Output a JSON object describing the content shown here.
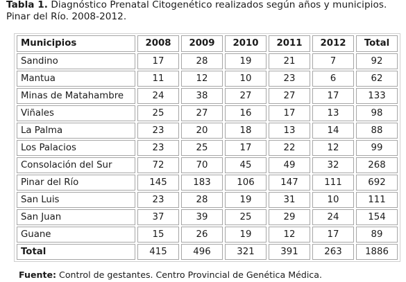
{
  "caption": {
    "label": "Tabla 1.",
    "text": " Diagnóstico Prenatal Citogenético realizados según años y municipios. Pinar del Río. 2008-2012."
  },
  "table": {
    "headers": {
      "municipio": "Municipios",
      "y2008": "2008",
      "y2009": "2009",
      "y2010": "2010",
      "y2011": "2011",
      "y2012": "2012",
      "total": "Total"
    },
    "rows": [
      {
        "municipio": "Sandino",
        "y2008": "17",
        "y2009": "28",
        "y2010": "19",
        "y2011": "21",
        "y2012": "7",
        "total": "92"
      },
      {
        "municipio": "Mantua",
        "y2008": "11",
        "y2009": "12",
        "y2010": "10",
        "y2011": "23",
        "y2012": "6",
        "total": "62"
      },
      {
        "municipio": "Minas de Matahambre",
        "y2008": "24",
        "y2009": "38",
        "y2010": "27",
        "y2011": "27",
        "y2012": "17",
        "total": "133"
      },
      {
        "municipio": "Viñales",
        "y2008": "25",
        "y2009": "27",
        "y2010": "16",
        "y2011": "17",
        "y2012": "13",
        "total": "98"
      },
      {
        "municipio": "La Palma",
        "y2008": "23",
        "y2009": "20",
        "y2010": "18",
        "y2011": "13",
        "y2012": "14",
        "total": "88"
      },
      {
        "municipio": "Los Palacios",
        "y2008": "23",
        "y2009": "25",
        "y2010": "17",
        "y2011": "22",
        "y2012": "12",
        "total": "99"
      },
      {
        "municipio": "Consolación del Sur",
        "y2008": "72",
        "y2009": "70",
        "y2010": "45",
        "y2011": "49",
        "y2012": "32",
        "total": "268"
      },
      {
        "municipio": "Pinar del Río",
        "y2008": "145",
        "y2009": "183",
        "y2010": "106",
        "y2011": "147",
        "y2012": "111",
        "total": "692"
      },
      {
        "municipio": "San Luis",
        "y2008": "23",
        "y2009": "28",
        "y2010": "19",
        "y2011": "31",
        "y2012": "10",
        "total": "111"
      },
      {
        "municipio": "San Juan",
        "y2008": "37",
        "y2009": "39",
        "y2010": "25",
        "y2011": "29",
        "y2012": "24",
        "total": "154"
      },
      {
        "municipio": "Guane",
        "y2008": "15",
        "y2009": "26",
        "y2010": "19",
        "y2011": "12",
        "y2012": "17",
        "total": "89"
      },
      {
        "municipio": "Total",
        "y2008": "415",
        "y2009": "496",
        "y2010": "321",
        "y2011": "391",
        "y2012": "263",
        "total": "1886"
      }
    ]
  },
  "footer": {
    "label": "Fuente:",
    "text": " Control de gestantes. Centro Provincial de Genética Médica."
  }
}
